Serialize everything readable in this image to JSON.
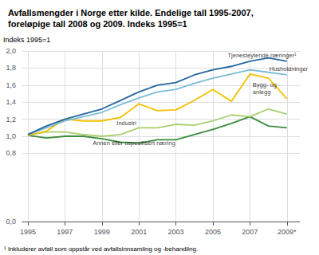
{
  "chart_data": {
    "type": "line",
    "title": "Avfallsmengder i Norge etter kilde. Endelige tall 1995-2007,\nforeløpige tall 2008 og 2009. Indeks 1995=1",
    "ylabel": "Indeks 1995=1",
    "footnote": "¹ Inkluderer avfall som oppstår ved avfallsinnsamling og -behandling.",
    "x": [
      1995,
      1996,
      1997,
      1998,
      1999,
      2000,
      2001,
      2002,
      2003,
      2004,
      2005,
      2006,
      2007,
      2008,
      2009
    ],
    "series": [
      {
        "name": "Tjenesteytende næringer¹",
        "color": "#2666a0",
        "values": [
          1.02,
          1.12,
          1.2,
          1.26,
          1.32,
          1.42,
          1.52,
          1.6,
          1.63,
          1.72,
          1.78,
          1.82,
          1.88,
          1.92,
          1.88
        ]
      },
      {
        "name": "Husholdninger",
        "color": "#7bbcd8",
        "values": [
          1.02,
          1.1,
          1.18,
          1.23,
          1.28,
          1.37,
          1.45,
          1.52,
          1.55,
          1.62,
          1.68,
          1.73,
          1.78,
          1.75,
          1.72
        ]
      },
      {
        "name": "Bygg- og\nanlegg",
        "color": "#f5c000",
        "values": [
          1.01,
          1.06,
          1.2,
          1.18,
          1.18,
          1.22,
          1.38,
          1.3,
          1.31,
          1.42,
          1.55,
          1.41,
          1.73,
          1.68,
          1.44
        ]
      },
      {
        "name": "Industri",
        "color": "#aacf6e",
        "values": [
          1.01,
          1.05,
          1.05,
          1.02,
          1.0,
          1.02,
          1.1,
          1.1,
          1.14,
          1.13,
          1.18,
          1.25,
          1.23,
          1.32,
          1.26
        ]
      },
      {
        "name": "Annen eller uspesifisert næring",
        "color": "#3d8c3d",
        "values": [
          1.01,
          0.98,
          1.0,
          1.0,
          0.97,
          0.93,
          0.92,
          0.96,
          0.96,
          1.02,
          1.08,
          1.15,
          1.23,
          1.12,
          1.1
        ]
      }
    ],
    "annotations": [
      {
        "text": "Tjenesteytende næringer¹",
        "x": 2005.8,
        "y": 1.905
      },
      {
        "text": "Husholdninger",
        "x": 2008.05,
        "y": 1.745
      },
      {
        "text": "Bygg- og\nanlegg",
        "x": 2007.15,
        "y": 1.565
      },
      {
        "text": "Industri",
        "x": 1999.8,
        "y": 1.115
      },
      {
        "text": "Annen eller uspesifisert næring",
        "x": 1998.5,
        "y": 0.875
      }
    ],
    "xlim": [
      1994.7,
      2009.7
    ],
    "xticks": [
      1995,
      1997,
      1999,
      2001,
      2003,
      2005,
      2007,
      {
        "value": 2009,
        "label": "2009*"
      }
    ],
    "ylim": [
      0.0,
      2.0
    ],
    "yticks": [
      {
        "value": 0.0,
        "label": "0,0"
      },
      {
        "value": 0.8,
        "label": "0,8"
      },
      {
        "value": 1.0,
        "label": "1,0"
      },
      {
        "value": 1.2,
        "label": "1,2"
      },
      {
        "value": 1.4,
        "label": "1,4"
      },
      {
        "value": 1.6,
        "label": "1,6"
      },
      {
        "value": 1.8,
        "label": "1,8"
      },
      {
        "value": 2.0,
        "label": "2,0"
      }
    ],
    "grid": true
  }
}
